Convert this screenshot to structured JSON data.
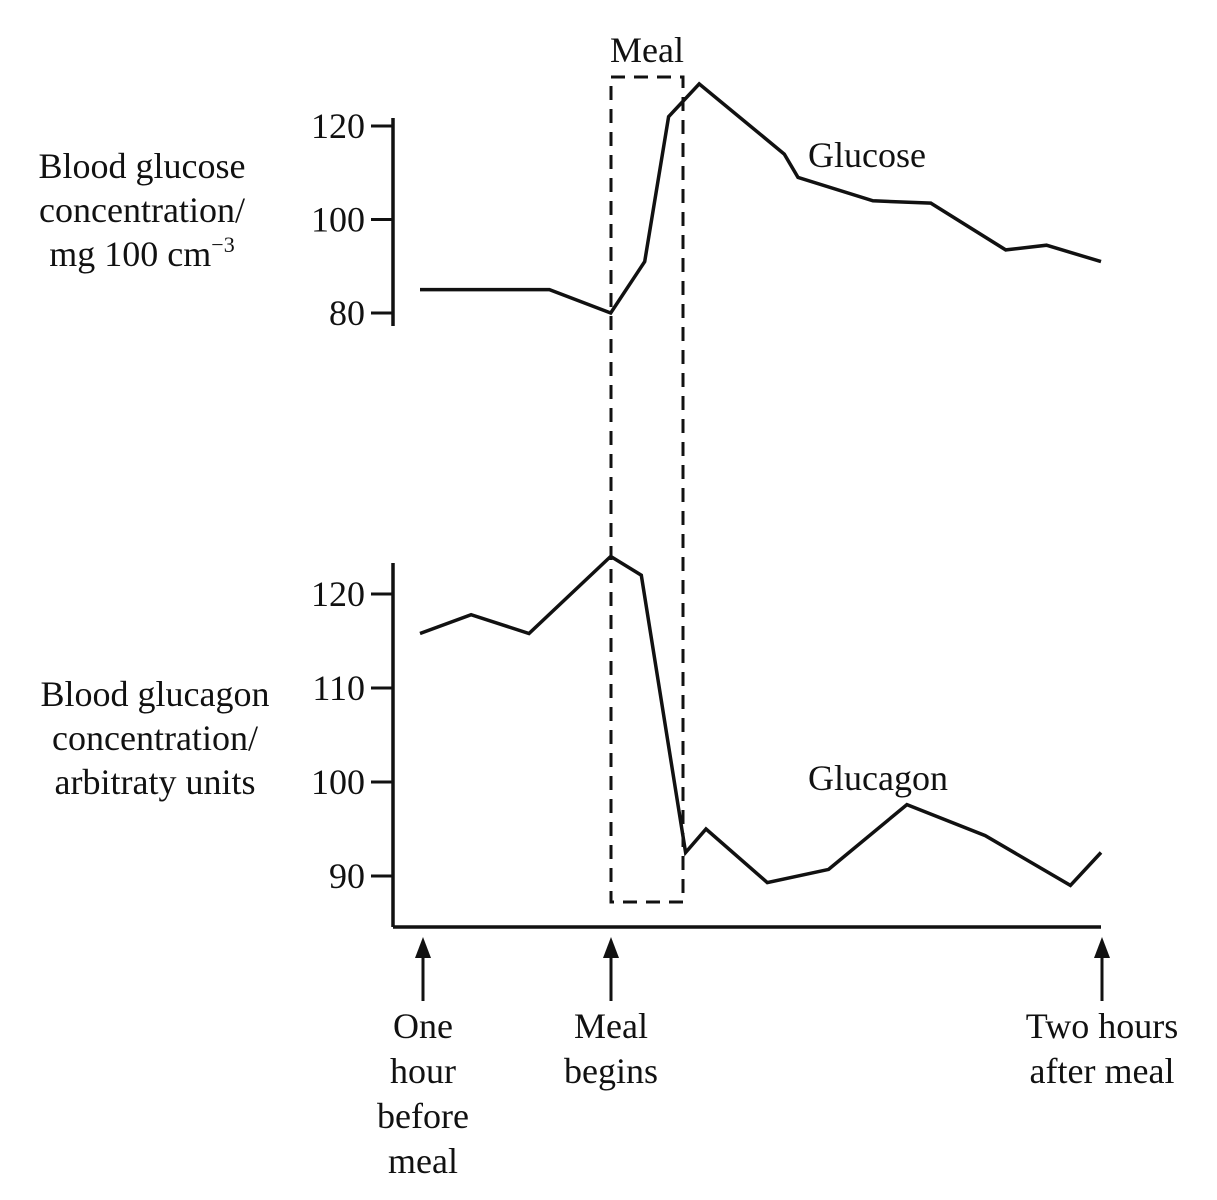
{
  "chart_data": {
    "type": "line",
    "panels": [
      {
        "id": "glucose",
        "ylabel_lines": [
          "Blood glucose",
          "concentration/",
          "mg 100 cm"
        ],
        "ylabel_superscript": "−3",
        "yticks": [
          80,
          100,
          120
        ],
        "ylim": [
          79,
          121
        ],
        "series": [
          {
            "name": "Glucose",
            "points": [
              {
                "t": 0.0,
                "v": 85
              },
              {
                "t": 0.19,
                "v": 85
              },
              {
                "t": 0.28,
                "v": 80
              },
              {
                "t": 0.33,
                "v": 91
              },
              {
                "t": 0.365,
                "v": 122
              },
              {
                "t": 0.41,
                "v": 129
              },
              {
                "t": 0.535,
                "v": 114
              },
              {
                "t": 0.555,
                "v": 109
              },
              {
                "t": 0.665,
                "v": 104
              },
              {
                "t": 0.75,
                "v": 103.5
              },
              {
                "t": 0.86,
                "v": 93.5
              },
              {
                "t": 0.92,
                "v": 94.5
              },
              {
                "t": 1.0,
                "v": 91
              }
            ]
          }
        ]
      },
      {
        "id": "glucagon",
        "ylabel_lines": [
          "Blood glucagon",
          "concentration/",
          "arbitraty units"
        ],
        "yticks": [
          90,
          100,
          110,
          120
        ],
        "ylim": [
          89,
          121
        ],
        "series": [
          {
            "name": "Glucagon",
            "points": [
              {
                "t": 0.0,
                "v": 115.8
              },
              {
                "t": 0.075,
                "v": 117.8
              },
              {
                "t": 0.16,
                "v": 115.8
              },
              {
                "t": 0.28,
                "v": 124
              },
              {
                "t": 0.325,
                "v": 122
              },
              {
                "t": 0.39,
                "v": 92.5
              },
              {
                "t": 0.42,
                "v": 95
              },
              {
                "t": 0.51,
                "v": 89.3
              },
              {
                "t": 0.6,
                "v": 90.7
              },
              {
                "t": 0.715,
                "v": 97.6
              },
              {
                "t": 0.83,
                "v": 94.3
              },
              {
                "t": 0.955,
                "v": 89
              },
              {
                "t": 1.0,
                "v": 92.5
              }
            ]
          }
        ]
      }
    ],
    "meal_window": {
      "label": "Meal",
      "start": 0.28,
      "end": 0.385
    },
    "time_markers": [
      {
        "t": 0.0,
        "lines": [
          "One",
          "hour",
          "before",
          "meal"
        ]
      },
      {
        "t": 0.28,
        "lines": [
          "Meal",
          "begins"
        ]
      },
      {
        "t": 1.0,
        "lines": [
          "Two hours",
          "after meal"
        ]
      }
    ]
  }
}
